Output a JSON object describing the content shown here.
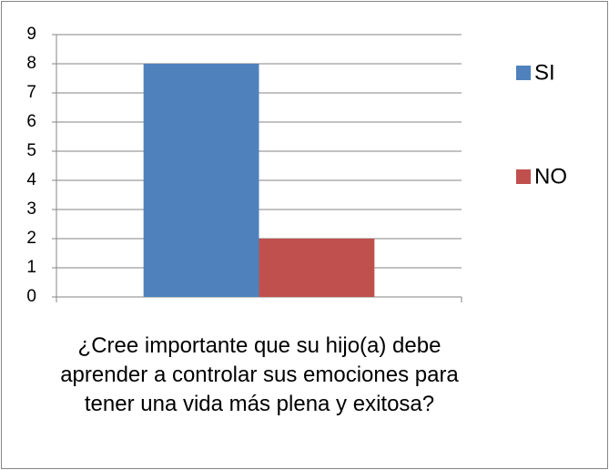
{
  "chart_data": {
    "type": "bar",
    "categories": [
      "¿Cree importante que su hijo(a) debe aprender a controlar sus emociones para tener una vida más plena y exitosa?"
    ],
    "series": [
      {
        "name": "SI",
        "color": "#4f81bd",
        "values": [
          8
        ]
      },
      {
        "name": "NO",
        "color": "#c0504d",
        "values": [
          2
        ]
      }
    ],
    "ylim": [
      0,
      9
    ],
    "yticks": [
      0,
      1,
      2,
      3,
      4,
      5,
      6,
      7,
      8,
      9
    ],
    "grid": true,
    "legend": "right"
  }
}
